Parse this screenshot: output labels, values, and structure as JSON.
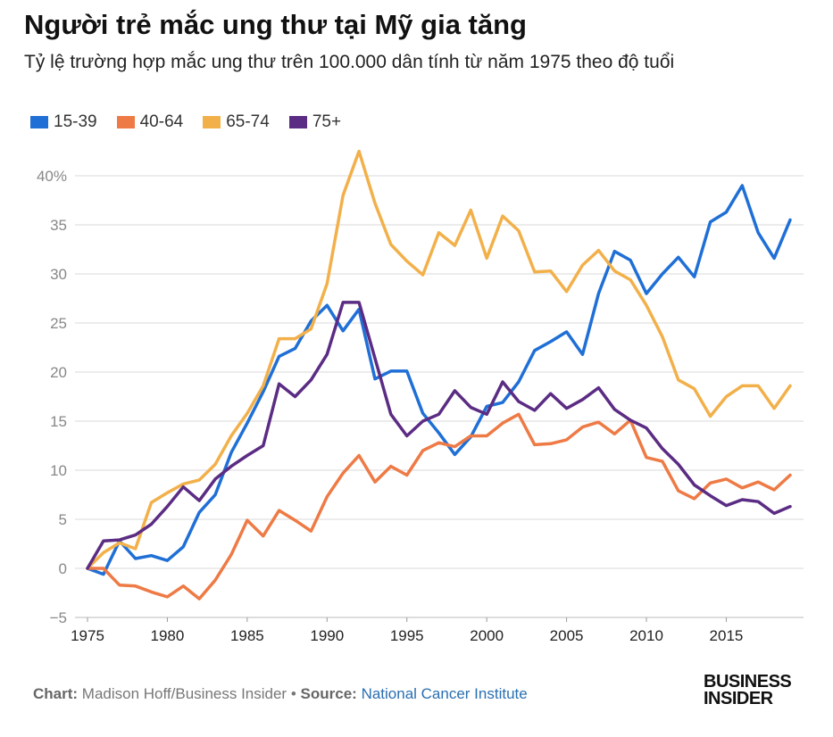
{
  "header": {
    "title": "Người trẻ mắc ung thư tại Mỹ gia tăng",
    "subtitle": "Tỷ lệ trường hợp mắc ung thư trên 100.000 dân tính từ năm 1975 theo độ tuổi"
  },
  "footer": {
    "chart_label": "Chart:",
    "chart_credit": "Madison Hoff/Business Insider",
    "bullet": "•",
    "source_label": "Source:",
    "source_name": "National Cancer Institute"
  },
  "logo": {
    "line1": "BUSINESS",
    "line2": "INSIDER"
  },
  "chart_data": {
    "type": "line",
    "title": "Người trẻ mắc ung thư tại Mỹ gia tăng",
    "xlabel": "",
    "ylabel": "",
    "xlim": [
      1975,
      2019
    ],
    "ylim": [
      -5,
      42.5
    ],
    "grid": true,
    "legend_position": "top-left",
    "x_ticks": [
      1975,
      1980,
      1985,
      1990,
      1995,
      2000,
      2005,
      2010,
      2015
    ],
    "y_ticks": [
      -5,
      0,
      5,
      10,
      15,
      20,
      25,
      30,
      35,
      40
    ],
    "y_tick_labels": [
      "−5",
      "0",
      "5",
      "10",
      "15",
      "20",
      "25",
      "30",
      "35",
      "40%"
    ],
    "x": [
      1975,
      1976,
      1977,
      1978,
      1979,
      1980,
      1981,
      1982,
      1983,
      1984,
      1985,
      1986,
      1987,
      1988,
      1989,
      1990,
      1991,
      1992,
      1993,
      1994,
      1995,
      1996,
      1997,
      1998,
      1999,
      2000,
      2001,
      2002,
      2003,
      2004,
      2005,
      2006,
      2007,
      2008,
      2009,
      2010,
      2011,
      2012,
      2013,
      2014,
      2015,
      2016,
      2017,
      2018,
      2019
    ],
    "series": [
      {
        "name": "15-39",
        "color": "#1f6fd6",
        "values": [
          0,
          -0.6,
          2.8,
          1,
          1.3,
          0.8,
          2.2,
          5.7,
          7.5,
          11.8,
          14.8,
          18,
          21.6,
          22.4,
          25.2,
          26.8,
          24.2,
          26.4,
          19.3,
          20.1,
          20.1,
          15.8,
          13.8,
          11.6,
          13.4,
          16.5,
          16.9,
          19,
          22.2,
          23.1,
          24.1,
          21.8,
          28,
          32.3,
          31.4,
          28,
          30,
          31.7,
          29.7,
          35.3,
          36.3,
          39,
          34.2,
          31.6,
          35.5
        ]
      },
      {
        "name": "40-64",
        "color": "#ee7a45",
        "values": [
          0,
          0,
          -1.7,
          -1.8,
          -2.4,
          -2.9,
          -1.8,
          -3.1,
          -1.2,
          1.4,
          4.9,
          3.3,
          5.9,
          4.9,
          3.8,
          7.3,
          9.7,
          11.5,
          8.8,
          10.4,
          9.5,
          12,
          12.8,
          12.4,
          13.5,
          13.5,
          14.8,
          15.7,
          12.6,
          12.7,
          13.1,
          14.4,
          14.9,
          13.7,
          15.1,
          11.3,
          10.9,
          7.9,
          7.1,
          8.7,
          9.1,
          8.2,
          8.8,
          8,
          9.5
        ]
      },
      {
        "name": "65-74",
        "color": "#f2b04a",
        "values": [
          0,
          1.6,
          2.6,
          2,
          6.7,
          7.7,
          8.6,
          9,
          10.6,
          13.5,
          15.8,
          18.6,
          23.4,
          23.4,
          24.4,
          29,
          38,
          42.5,
          37.2,
          33,
          31.3,
          29.9,
          34.2,
          32.9,
          36.5,
          31.6,
          35.9,
          34.4,
          30.2,
          30.3,
          28.2,
          30.9,
          32.4,
          30.3,
          29.4,
          26.8,
          23.6,
          19.2,
          18.3,
          15.5,
          17.5,
          18.6,
          18.6,
          16.3,
          18.6
        ]
      },
      {
        "name": "75+",
        "color": "#5b2c83",
        "values": [
          0,
          2.8,
          2.9,
          3.4,
          4.5,
          6.3,
          8.3,
          6.9,
          9.1,
          10.4,
          11.5,
          12.5,
          18.8,
          17.5,
          19.2,
          21.8,
          27.1,
          27.1,
          21.4,
          15.7,
          13.5,
          15,
          15.7,
          18.1,
          16.4,
          15.7,
          19,
          17,
          16.1,
          17.8,
          16.3,
          17.2,
          18.4,
          16.2,
          15.1,
          14.3,
          12.2,
          10.6,
          8.5,
          7.4,
          6.4,
          7,
          6.8,
          5.6,
          6.3
        ]
      }
    ]
  }
}
